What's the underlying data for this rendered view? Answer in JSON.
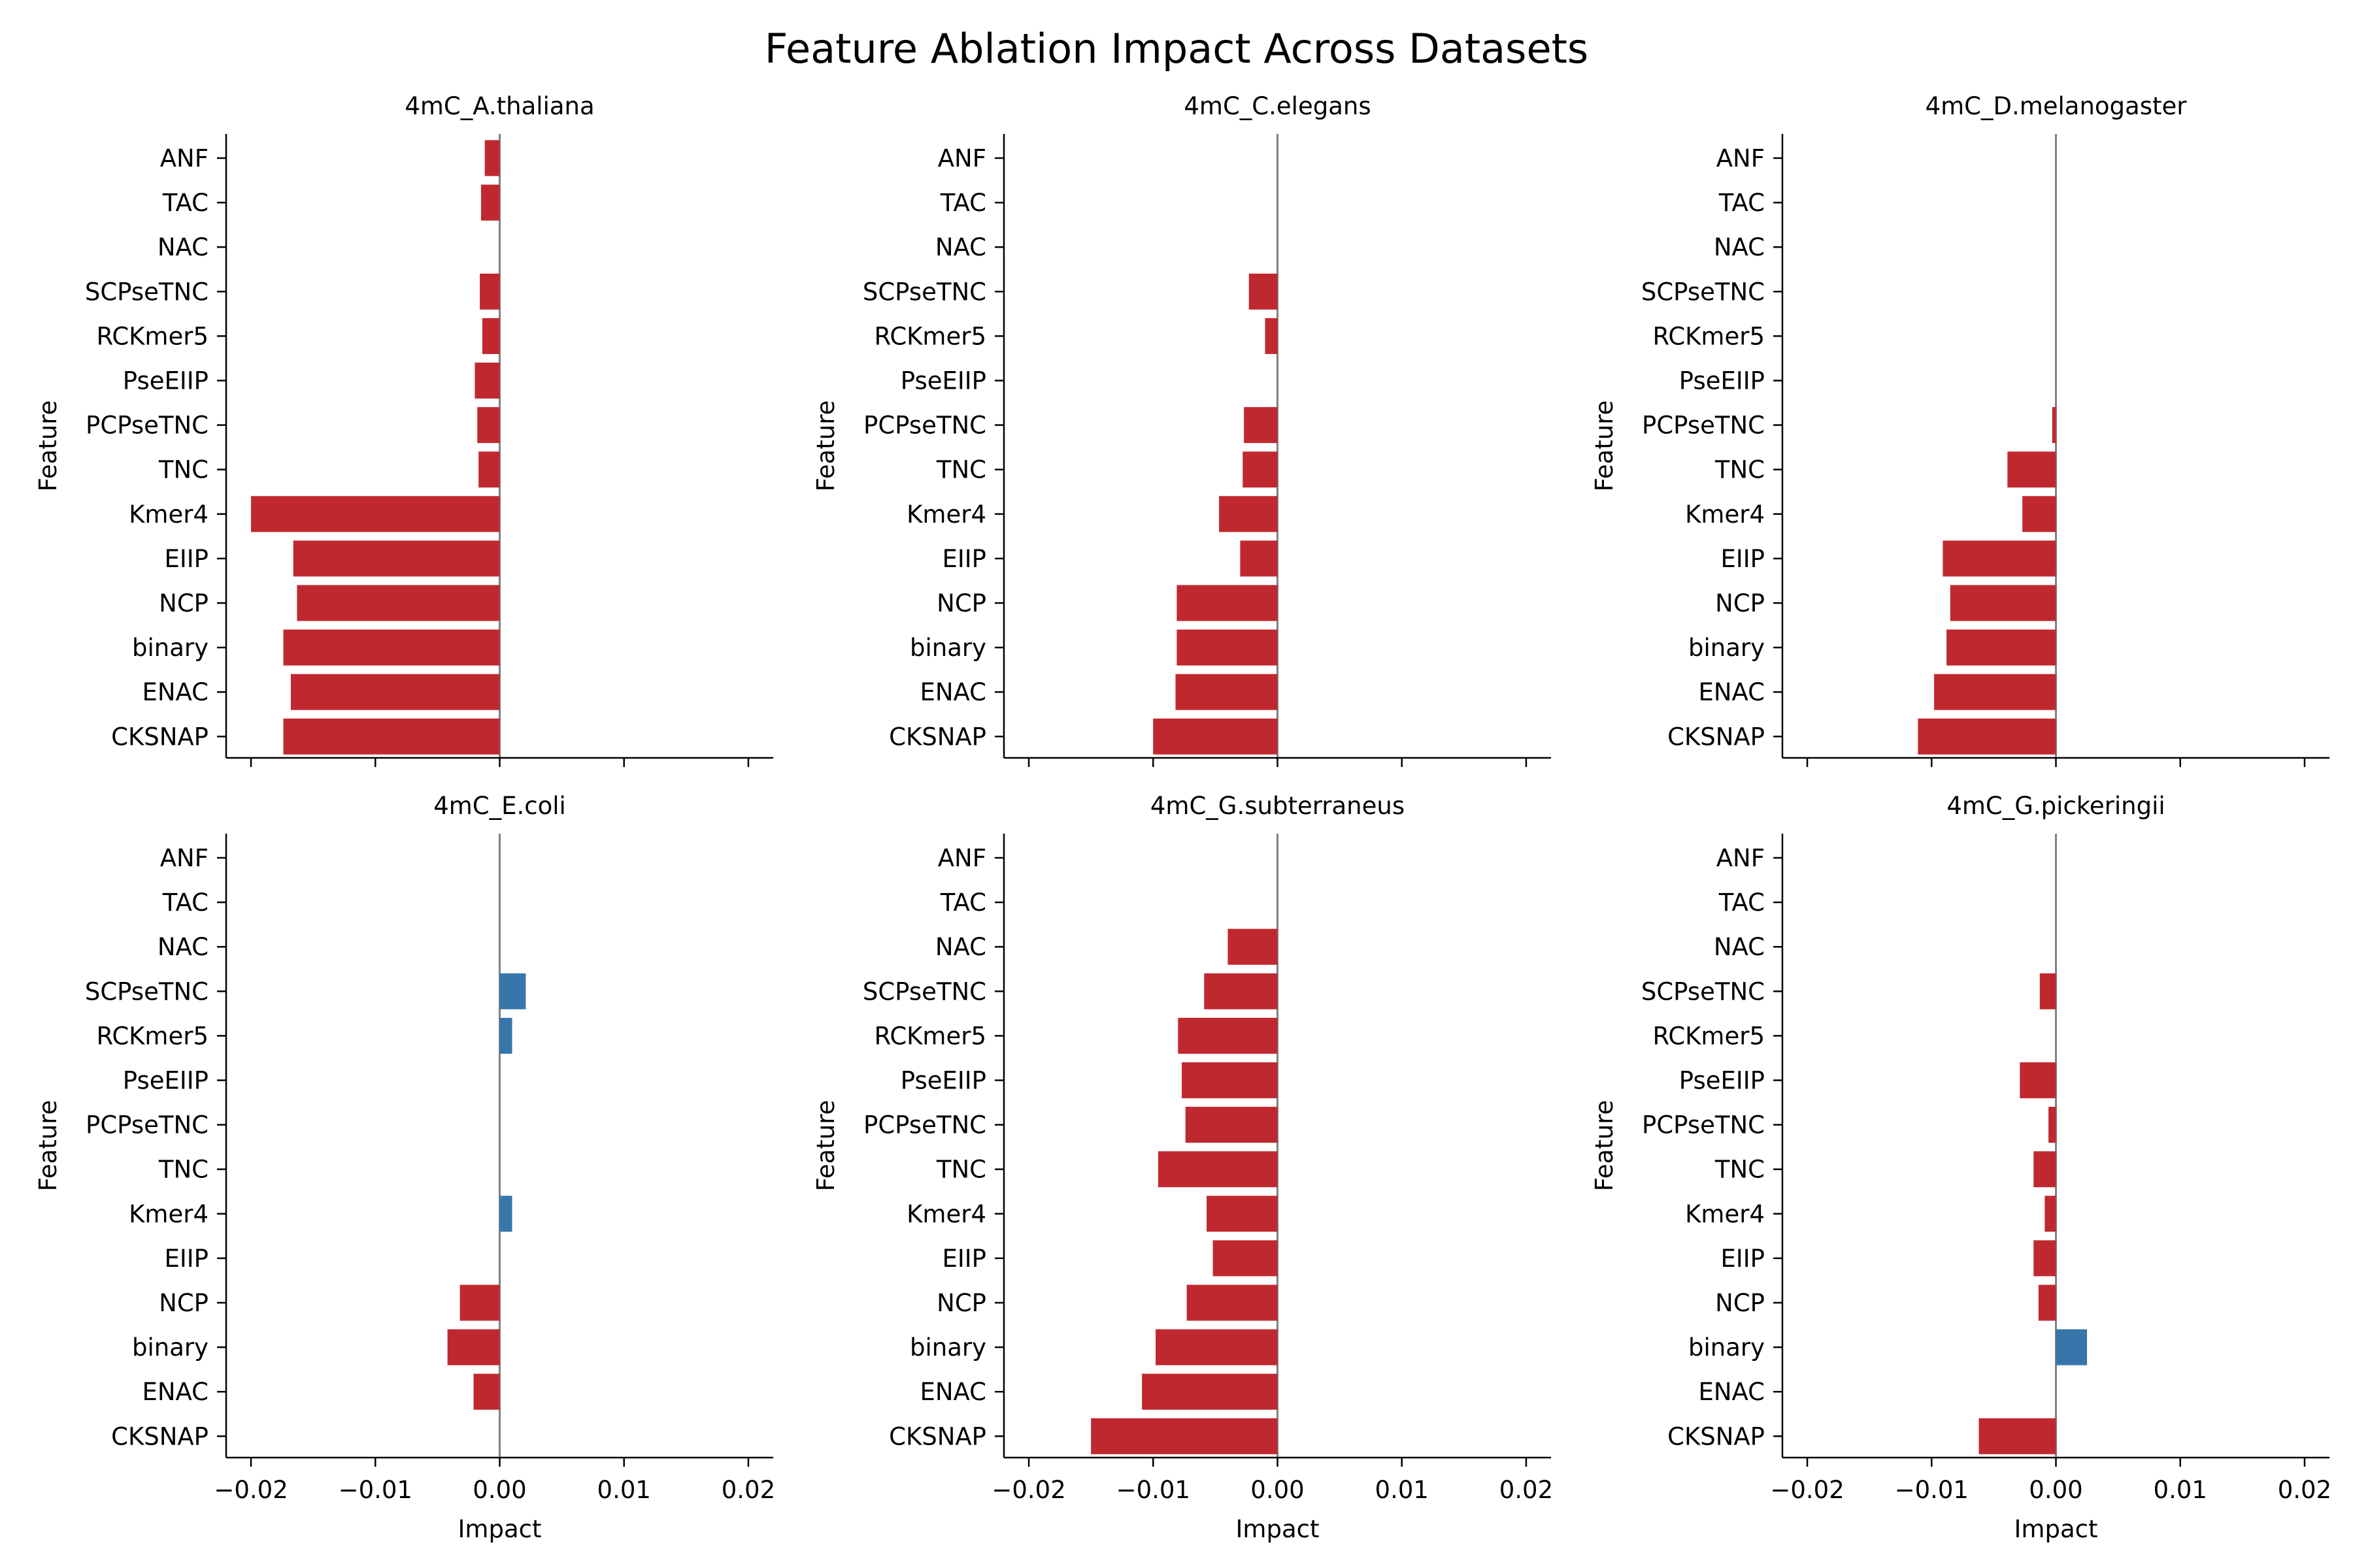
{
  "chart_data": {
    "title": "Feature Ablation Impact Across Datasets",
    "type": "bar",
    "orientation": "horizontal",
    "xlabel": "Impact",
    "ylabel": "Feature",
    "xlim": [
      -0.022,
      0.022
    ],
    "xticks": [
      "−0.02",
      "−0.01",
      "0.00",
      "0.01",
      "0.02"
    ],
    "xtick_values": [
      -0.02,
      -0.01,
      0.0,
      0.01,
      0.02
    ],
    "colors": {
      "negative": "#c0282f",
      "positive": "#3776ab",
      "zero_line": "#808080"
    },
    "categories": [
      "ANF",
      "TAC",
      "NAC",
      "SCPseTNC",
      "RCKmer5",
      "PseEIIP",
      "PCPseTNC",
      "TNC",
      "Kmer4",
      "EIIP",
      "NCP",
      "binary",
      "ENAC",
      "CKSNAP"
    ],
    "panels": [
      {
        "title": "4mC_A.thaliana",
        "values": [
          -0.0012,
          -0.0015,
          0.0,
          -0.0016,
          -0.0014,
          -0.002,
          -0.0018,
          -0.0017,
          -0.02,
          -0.0166,
          -0.0163,
          -0.0174,
          -0.0168,
          -0.0174
        ]
      },
      {
        "title": "4mC_C.elegans",
        "values": [
          0.0,
          0.0,
          0.0,
          -0.0023,
          -0.001,
          0.0,
          -0.0027,
          -0.0028,
          -0.0047,
          -0.003,
          -0.0081,
          -0.0081,
          -0.0082,
          -0.01
        ]
      },
      {
        "title": "4mC_D.melanogaster",
        "values": [
          0.0,
          0.0,
          0.0,
          0.0,
          0.0,
          0.0,
          -0.0003,
          -0.0039,
          -0.0027,
          -0.0091,
          -0.0085,
          -0.0088,
          -0.0098,
          -0.0111
        ]
      },
      {
        "title": "4mC_E.coli",
        "values": [
          0.0,
          0.0,
          0.0,
          0.0021,
          0.001,
          0.0,
          0.0,
          0.0,
          0.001,
          0.0,
          -0.0032,
          -0.0042,
          -0.0021,
          0.0
        ]
      },
      {
        "title": "4mC_G.subterraneus",
        "values": [
          0.0,
          0.0,
          -0.004,
          -0.0059,
          -0.008,
          -0.0077,
          -0.0074,
          -0.0096,
          -0.0057,
          -0.0052,
          -0.0073,
          -0.0098,
          -0.0109,
          -0.015
        ]
      },
      {
        "title": "4mC_G.pickeringii",
        "values": [
          0.0,
          0.0,
          0.0,
          -0.0013,
          0.0,
          -0.0029,
          -0.0006,
          -0.0018,
          -0.0009,
          -0.0018,
          -0.0014,
          0.0025,
          0.0,
          -0.0062
        ]
      }
    ]
  }
}
